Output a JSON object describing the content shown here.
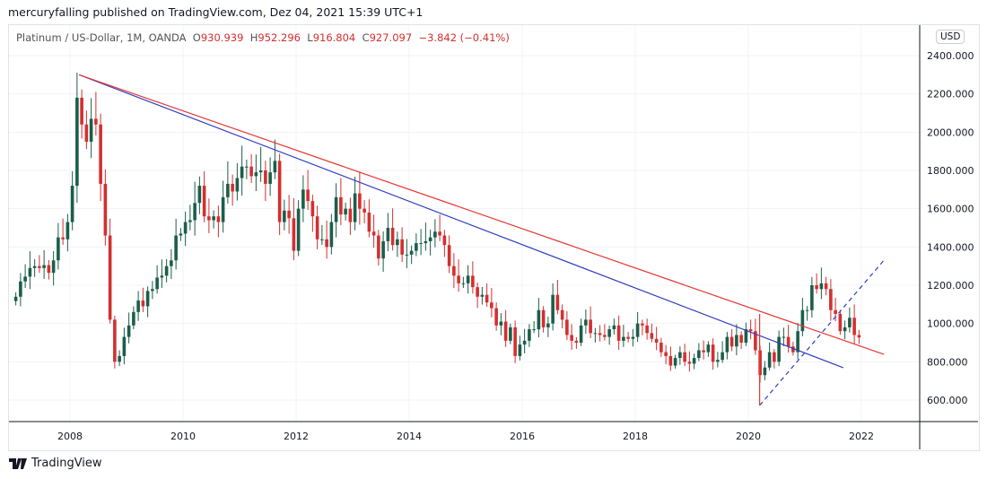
{
  "header": {
    "published": "mercuryfalling published on TradingView.com, Dez 04, 2021 15:39 UTC+1"
  },
  "legend": {
    "symbol": "Platinum / US-Dollar, 1M, OANDA",
    "o_label": "O",
    "o": "930.939",
    "h_label": "H",
    "h": "952.296",
    "l_label": "L",
    "l": "916.804",
    "c_label": "C",
    "c": "927.097",
    "change": "−3.842 (−0.41%)"
  },
  "currency": "USD",
  "footer": {
    "brand": "TradingView"
  },
  "colors": {
    "up": "#26a69a",
    "up_body": "#1b5e4a",
    "down": "#d32f2f",
    "blue_line": "#2f3fbf",
    "red_line": "#e53935"
  },
  "chart_data": {
    "type": "candlestick",
    "start": "2007-01",
    "interval": "1M",
    "closes": [
      1140,
      1220,
      1245,
      1290,
      1300,
      1290,
      1305,
      1265,
      1330,
      1450,
      1440,
      1530,
      1720,
      2180,
      2040,
      1950,
      2070,
      2040,
      1730,
      1460,
      1020,
      800,
      830,
      930,
      990,
      1060,
      1120,
      1090,
      1170,
      1180,
      1240,
      1250,
      1300,
      1330,
      1460,
      1470,
      1530,
      1540,
      1630,
      1720,
      1560,
      1540,
      1560,
      1530,
      1660,
      1730,
      1690,
      1760,
      1820,
      1820,
      1770,
      1790,
      1800,
      1730,
      1790,
      1850,
      1530,
      1590,
      1550,
      1380,
      1600,
      1700,
      1640,
      1560,
      1440,
      1440,
      1400,
      1530,
      1660,
      1570,
      1600,
      1530,
      1680,
      1600,
      1580,
      1480,
      1460,
      1340,
      1430,
      1500,
      1410,
      1440,
      1360,
      1360,
      1380,
      1420,
      1420,
      1430,
      1450,
      1480,
      1460,
      1410,
      1300,
      1250,
      1210,
      1210,
      1250,
      1190,
      1140,
      1150,
      1110,
      1080,
      990,
      1010,
      910,
      980,
      830,
      890,
      910,
      970,
      970,
      1070,
      980,
      1000,
      1150,
      1070,
      1020,
      940,
      910,
      900,
      990,
      1020,
      950,
      950,
      940,
      930,
      970,
      990,
      910,
      930,
      920,
      930,
      1000,
      990,
      950,
      920,
      900,
      850,
      830,
      780,
      820,
      850,
      800,
      790,
      820,
      860,
      850,
      890,
      800,
      810,
      850,
      930,
      880,
      940,
      900,
      970,
      960,
      860,
      730,
      770,
      850,
      800,
      930,
      930,
      880,
      850,
      960,
      1070,
      1070,
      1200,
      1180,
      1210,
      1180,
      1070,
      1050,
      960,
      980,
      1030,
      940,
      927
    ],
    "y_ticks": [
      "600.000",
      "800.000",
      "1000.000",
      "1200.000",
      "1400.000",
      "1600.000",
      "1800.000",
      "2000.000",
      "2200.000",
      "2400.000"
    ],
    "x_ticks": [
      "2008",
      "2010",
      "2012",
      "2014",
      "2016",
      "2018",
      "2020",
      "2022"
    ],
    "ylim": [
      480,
      2480
    ],
    "trendlines": [
      {
        "name": "blue",
        "from": [
          2008.16,
          2300
        ],
        "to": [
          2021.68,
          769
        ],
        "style": "solid"
      },
      {
        "name": "red",
        "from": [
          2008.16,
          2300
        ],
        "to": [
          2022.4,
          839
        ],
        "style": "solid"
      },
      {
        "name": "blue-dashed",
        "from": [
          2020.2,
          572
        ],
        "to": [
          2022.4,
          1331
        ],
        "style": "dashed"
      },
      {
        "name": "red-vertical",
        "from": [
          2020.2,
          572
        ],
        "to": [
          2020.2,
          1050
        ],
        "style": "solid"
      }
    ]
  }
}
